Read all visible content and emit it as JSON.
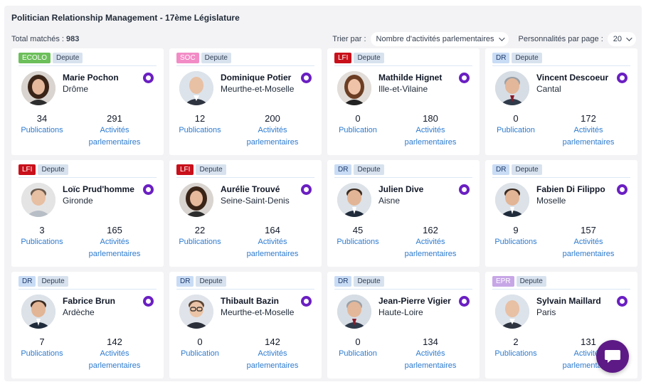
{
  "header": {
    "title": "Politician Relationship Management - 17ème Législature",
    "total_label": "Total matchés :",
    "total_value": "983",
    "sort_label": "Trier par :",
    "sort_value": "Nombre d'activités parlementaires",
    "per_page_label": "Personnalités par page :",
    "per_page_value": "20"
  },
  "group_colors": {
    "ECOLO": "#6cbf5a",
    "SOC": "#f28cc6",
    "LFI": "#c8101b",
    "DR": "#c9dcf5",
    "EPR": "#c7a6e6"
  },
  "cards": [
    {
      "group": "ECOLO",
      "role": "Depute",
      "name": "Marie Pochon",
      "dept": "Drôme",
      "pubs": "34",
      "pubs_label": "Publications",
      "acts": "291",
      "acts_label": "Activités parlementaires",
      "avatar": "female-dark-hair"
    },
    {
      "group": "SOC",
      "role": "Depute",
      "name": "Dominique Potier",
      "dept": "Meurthe-et-Moselle",
      "pubs": "12",
      "pubs_label": "Publications",
      "acts": "200",
      "acts_label": "Activités parlementaires",
      "avatar": "male-bald"
    },
    {
      "group": "LFI",
      "role": "Depute",
      "name": "Mathilde Hignet",
      "dept": "Ille-et-Vilaine",
      "pubs": "0",
      "pubs_label": "Publication",
      "acts": "180",
      "acts_label": "Activités parlementaires",
      "avatar": "female-brown-hair"
    },
    {
      "group": "DR",
      "role": "Depute",
      "name": "Vincent Descoeur",
      "dept": "Cantal",
      "pubs": "0",
      "pubs_label": "Publication",
      "acts": "172",
      "acts_label": "Activités parlementaires",
      "avatar": "male-grey-hair"
    },
    {
      "group": "LFI",
      "role": "Depute",
      "name": "Loïc Prud'homme",
      "dept": "Gironde",
      "pubs": "3",
      "pubs_label": "Publications",
      "acts": "165",
      "acts_label": "Activités parlementaires",
      "avatar": "male-short-hair"
    },
    {
      "group": "LFI",
      "role": "Depute",
      "name": "Aurélie Trouvé",
      "dept": "Seine-Saint-Denis",
      "pubs": "22",
      "pubs_label": "Publications",
      "acts": "164",
      "acts_label": "Activités parlementaires",
      "avatar": "female-dark-hair"
    },
    {
      "group": "DR",
      "role": "Depute",
      "name": "Julien Dive",
      "dept": "Aisne",
      "pubs": "45",
      "pubs_label": "Publications",
      "acts": "162",
      "acts_label": "Activités parlementaires",
      "avatar": "male-dark-hair"
    },
    {
      "group": "DR",
      "role": "Depute",
      "name": "Fabien Di Filippo",
      "dept": "Moselle",
      "pubs": "9",
      "pubs_label": "Publications",
      "acts": "157",
      "acts_label": "Activités parlementaires",
      "avatar": "male-dark-hair"
    },
    {
      "group": "DR",
      "role": "Depute",
      "name": "Fabrice Brun",
      "dept": "Ardèche",
      "pubs": "7",
      "pubs_label": "Publications",
      "acts": "142",
      "acts_label": "Activités parlementaires",
      "avatar": "male-dark-hair"
    },
    {
      "group": "DR",
      "role": "Depute",
      "name": "Thibault Bazin",
      "dept": "Meurthe-et-Moselle",
      "pubs": "0",
      "pubs_label": "Publication",
      "acts": "142",
      "acts_label": "Activités parlementaires",
      "avatar": "male-glasses"
    },
    {
      "group": "DR",
      "role": "Depute",
      "name": "Jean-Pierre Vigier",
      "dept": "Haute-Loire",
      "pubs": "0",
      "pubs_label": "Publication",
      "acts": "134",
      "acts_label": "Activités parlementaires",
      "avatar": "male-grey-hair"
    },
    {
      "group": "EPR",
      "role": "Depute",
      "name": "Sylvain Maillard",
      "dept": "Paris",
      "pubs": "2",
      "pubs_label": "Publications",
      "acts": "131",
      "acts_label": "Activités parlementaires",
      "avatar": "male-bald"
    }
  ],
  "chat": {
    "icon": "chat-bubble-icon"
  }
}
